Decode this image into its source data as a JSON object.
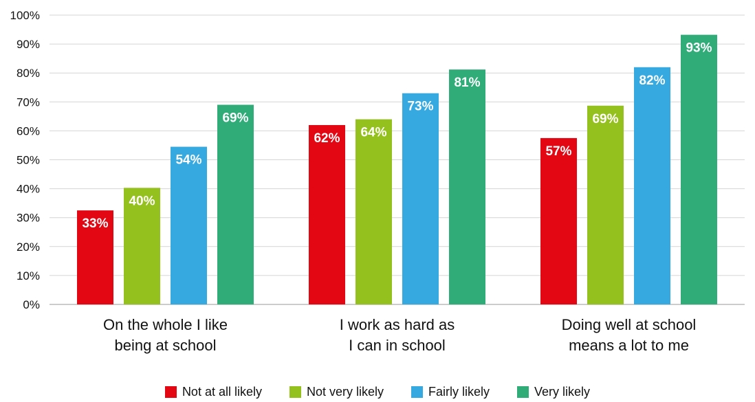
{
  "chart_data": {
    "type": "bar",
    "categories": [
      [
        "On the whole I like",
        "being at school"
      ],
      [
        "I work as hard as",
        "I can in school"
      ],
      [
        "Doing well at school",
        "means a lot to me"
      ]
    ],
    "series": [
      {
        "name": "Not at all likely",
        "color": "#e30613",
        "values": [
          32.5,
          62,
          57.5
        ],
        "labels": [
          "33%",
          "62%",
          "57%"
        ]
      },
      {
        "name": "Not very likely",
        "color": "#95c11f",
        "values": [
          40.3,
          64,
          68.7
        ],
        "labels": [
          "40%",
          "64%",
          "69%"
        ]
      },
      {
        "name": "Fairly likely",
        "color": "#36a9e1",
        "values": [
          54.5,
          73,
          82
        ],
        "labels": [
          "54%",
          "73%",
          "82%"
        ]
      },
      {
        "name": "Very likely",
        "color": "#2fac78",
        "values": [
          69,
          81.2,
          93.2
        ],
        "labels": [
          "69%",
          "81%",
          "93%"
        ]
      }
    ],
    "yticks": [
      "0%",
      "10%",
      "20%",
      "30%",
      "40%",
      "50%",
      "60%",
      "70%",
      "80%",
      "90%",
      "100%"
    ],
    "ylim": [
      0,
      100
    ],
    "grid": true,
    "legend_position": "bottom",
    "title": "",
    "xlabel": "",
    "ylabel": ""
  }
}
